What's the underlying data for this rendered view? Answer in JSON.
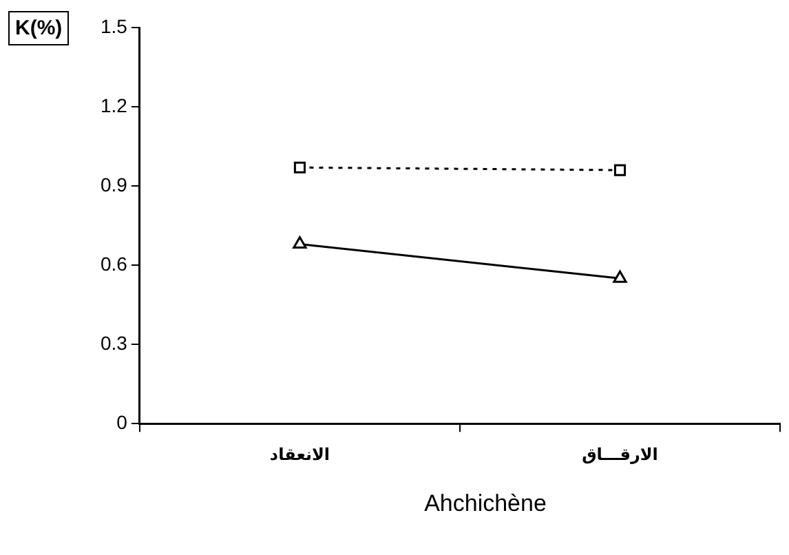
{
  "chart_data": {
    "type": "line",
    "xlabel": "Ahchichène",
    "ylabel": "K(%)",
    "categories": [
      "الانعقاد",
      "الارقـــاق"
    ],
    "series": [
      {
        "color": "#000000",
        "values": [
          0.97,
          0.96
        ],
        "marker": "square",
        "line_style": "dotted"
      },
      {
        "color": "#000000",
        "values": [
          0.68,
          0.55
        ],
        "marker": "triangle",
        "line_style": "solid"
      }
    ],
    "ylim": [
      0,
      1.5
    ],
    "yticks": [
      0,
      0.3,
      0.6,
      0.9,
      1.2,
      1.5
    ],
    "grid": false,
    "legend": false
  }
}
